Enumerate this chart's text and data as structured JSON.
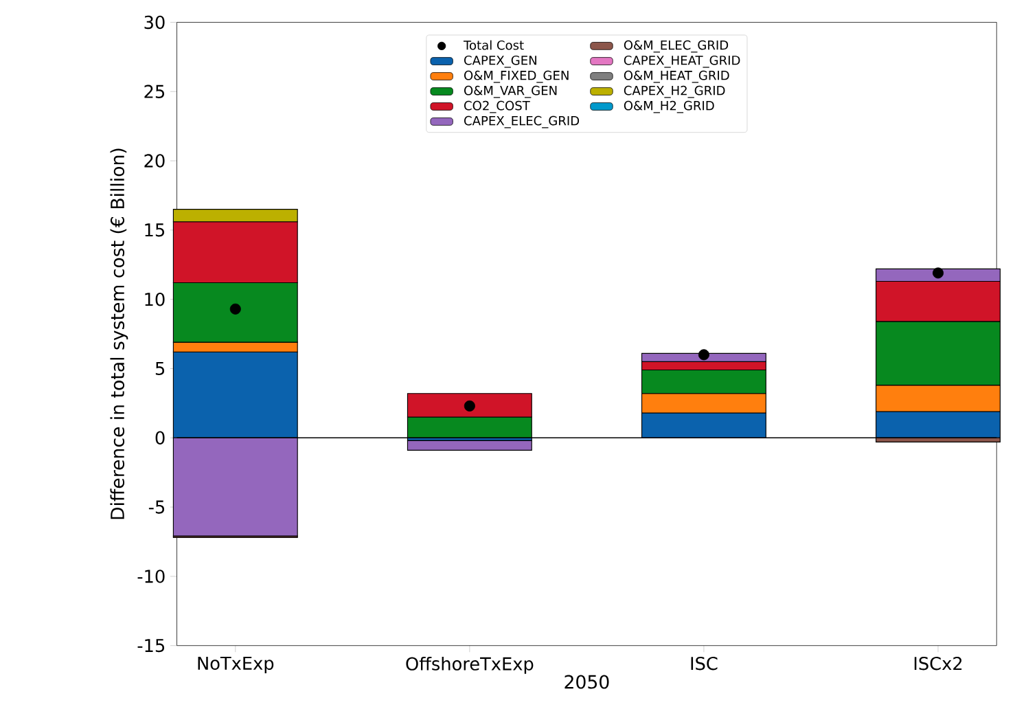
{
  "chart_data": {
    "type": "bar",
    "stacked": true,
    "xlabel": "2050",
    "ylabel": "Difference in total system cost (€ Billion)",
    "categories": [
      "NoTxExp",
      "OffshoreTxExp",
      "ISC",
      "ISCx2"
    ],
    "ylim": [
      -15,
      30
    ],
    "yticks": [
      -15,
      -10,
      -5,
      0,
      5,
      10,
      15,
      20,
      25,
      30
    ],
    "legend": "top",
    "grid": false,
    "ref_lines": [
      {
        "axis": "y",
        "value": 0,
        "color": "#000000"
      }
    ],
    "series": [
      {
        "name": "Total Cost",
        "type": "scatter",
        "color": "#000000",
        "marker": "circle",
        "x": [
          "NoTxExp",
          "OffshoreTxExp",
          "ISC",
          "ISCx2"
        ],
        "values": [
          9.3,
          2.3,
          6.0,
          11.9
        ]
      },
      {
        "name": "CAPEX_GEN",
        "color": "#0b62ad",
        "values": [
          6.2,
          -0.2,
          1.8,
          1.9
        ]
      },
      {
        "name": "O&M_FIXED_GEN",
        "color": "#ff7f0e",
        "values": [
          0.7,
          0,
          1.4,
          1.9
        ]
      },
      {
        "name": "O&M_VAR_GEN",
        "color": "#07891f",
        "values": [
          4.3,
          1.5,
          1.7,
          4.6
        ]
      },
      {
        "name": "CO2_COST",
        "color": "#d01428",
        "values": [
          4.4,
          1.7,
          0.6,
          2.9
        ]
      },
      {
        "name": "CAPEX_ELEC_GRID",
        "color": "#9467bd",
        "values": [
          -7.1,
          -0.7,
          0.6,
          0.9
        ]
      },
      {
        "name": "O&M_ELEC_GRID",
        "color": "#8c564b",
        "values": [
          -0.1,
          0,
          0,
          -0.3
        ]
      },
      {
        "name": "CAPEX_HEAT_GRID",
        "color": "#e377c2",
        "values": [
          0,
          0,
          0,
          0
        ]
      },
      {
        "name": "O&M_HEAT_GRID",
        "color": "#7f7f7f",
        "values": [
          0,
          0,
          0,
          0
        ]
      },
      {
        "name": "CAPEX_H2_GRID",
        "color": "#bcb000",
        "values": [
          0.9,
          0,
          0,
          0
        ]
      },
      {
        "name": "O&M_H2_GRID",
        "color": "#0099cc",
        "values": [
          0,
          0,
          0,
          0
        ]
      }
    ]
  }
}
